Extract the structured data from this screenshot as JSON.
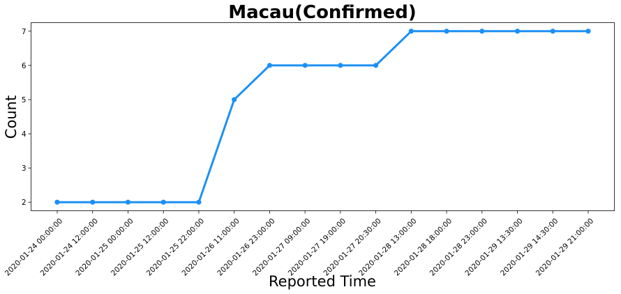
{
  "chart_data": {
    "type": "line",
    "title": "Macau(Confirmed)",
    "xlabel": "Reported Time",
    "ylabel": "Count",
    "categories": [
      "2020-01-24 00:00:00",
      "2020-01-24 12:00:00",
      "2020-01-25 00:00:00",
      "2020-01-25 12:00:00",
      "2020-01-25 22:00:00",
      "2020-01-26 11:00:00",
      "2020-01-26 23:00:00",
      "2020-01-27 09:00:00",
      "2020-01-27 19:00:00",
      "2020-01-27 20:30:00",
      "2020-01-28 13:00:00",
      "2020-01-28 18:00:00",
      "2020-01-28 23:00:00",
      "2020-01-29 13:30:00",
      "2020-01-29 14:30:00",
      "2020-01-29 21:00:00"
    ],
    "series": [
      {
        "values": [
          2,
          2,
          2,
          2,
          2,
          5,
          6,
          6,
          6,
          6,
          7,
          7,
          7,
          7,
          7,
          7
        ],
        "color": "#1e90f5"
      }
    ],
    "yticks": [
      2,
      3,
      4,
      5,
      6,
      7
    ],
    "ylim": [
      1.75,
      7.25
    ],
    "grid": false,
    "legend": "none",
    "xtick_rotation": -45
  }
}
